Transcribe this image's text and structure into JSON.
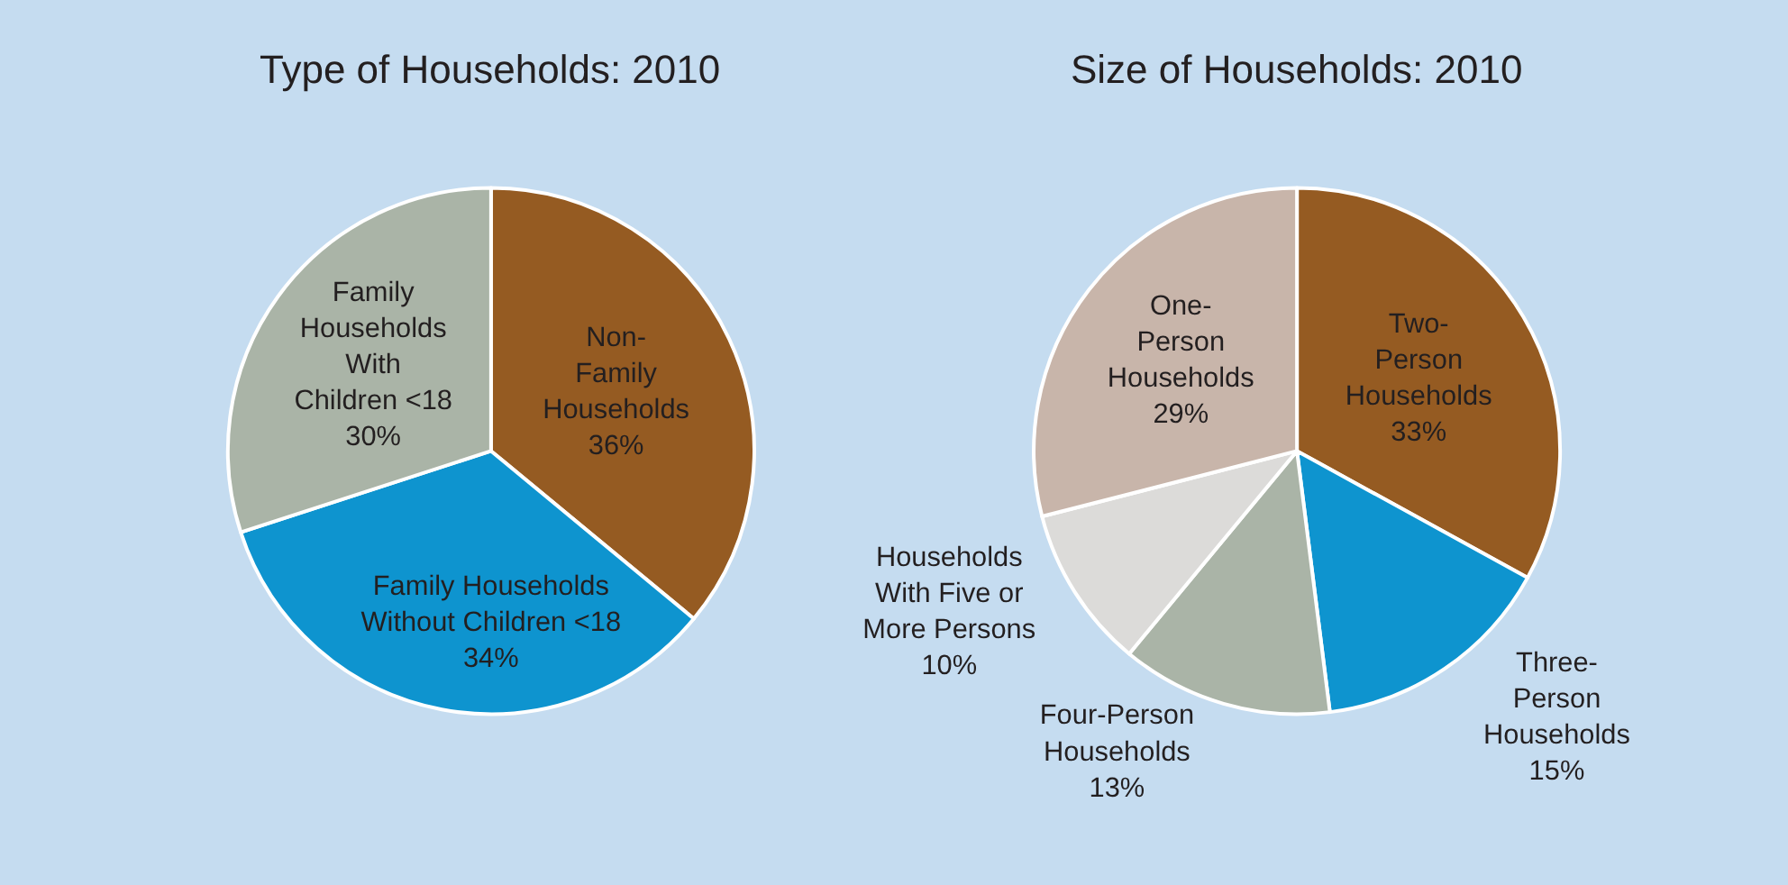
{
  "chart_data": [
    {
      "type": "pie",
      "title": "Type of Households: 2010",
      "categories": [
        "Non-\nFamily\nHouseholds",
        "Family Households\nWithout Children <18",
        "Family\nHouseholds\nWith\nChildren <18"
      ],
      "values": [
        36,
        34,
        30
      ],
      "value_labels": [
        "36%",
        "34%",
        "30%"
      ],
      "colors": [
        "#955b22",
        "#0e94cf",
        "#aab4a7"
      ]
    },
    {
      "type": "pie",
      "title": "Size of Households: 2010",
      "categories": [
        "Two-\nPerson\nHouseholds",
        "Three-\nPerson\nHouseholds",
        "Four-Person\nHouseholds",
        "Households\nWith Five or\nMore Persons",
        "One-\nPerson\nHouseholds"
      ],
      "values": [
        33,
        15,
        13,
        10,
        29
      ],
      "value_labels": [
        "33%",
        "15%",
        "13%",
        "10%",
        "29%"
      ],
      "colors": [
        "#955b22",
        "#0e94cf",
        "#aab4a7",
        "#dcdbd9",
        "#c8b5aa"
      ]
    }
  ]
}
